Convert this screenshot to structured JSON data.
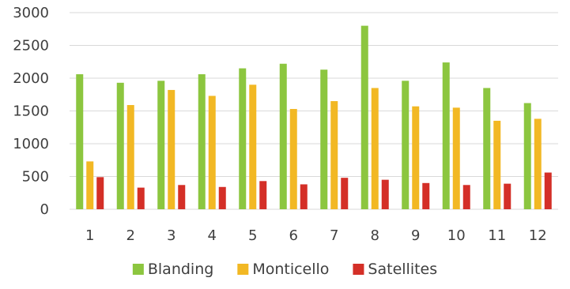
{
  "chart_data": {
    "type": "bar",
    "title": "",
    "xlabel": "",
    "ylabel": "",
    "categories": [
      "1",
      "2",
      "3",
      "4",
      "5",
      "6",
      "7",
      "8",
      "9",
      "10",
      "11",
      "12"
    ],
    "ylim": [
      0,
      3000
    ],
    "yticks": [
      "0",
      "500",
      "1000",
      "1500",
      "2000",
      "2500",
      "3000"
    ],
    "grid": true,
    "legend_position": "bottom",
    "series": [
      {
        "name": "Blanding",
        "color": "#8CC63F",
        "values": [
          2060,
          1930,
          1960,
          2060,
          2150,
          2220,
          2130,
          2800,
          1960,
          2240,
          1850,
          1620
        ]
      },
      {
        "name": "Monticello",
        "color": "#F2B824",
        "values": [
          730,
          1590,
          1820,
          1730,
          1900,
          1530,
          1650,
          1850,
          1570,
          1550,
          1350,
          1380
        ]
      },
      {
        "name": "Satellites",
        "color": "#D42F27",
        "values": [
          490,
          330,
          370,
          340,
          430,
          380,
          480,
          450,
          400,
          370,
          390,
          560
        ]
      }
    ],
    "colors": {
      "grid": "#d9d9d9",
      "text": "#3f3f3f"
    }
  }
}
